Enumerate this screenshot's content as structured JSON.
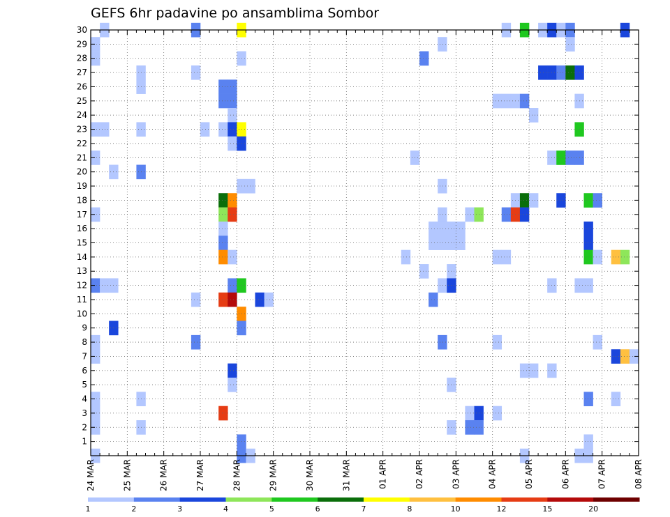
{
  "chart_data": {
    "type": "heatmap",
    "title": "GEFS 6hr padavine po ansamblima Sombor",
    "xlabel": "",
    "ylabel": "",
    "x_ticks": [
      "24 MAR",
      "25 MAR",
      "26 MAR",
      "27 MAR",
      "28 MAR",
      "29 MAR",
      "30 MAR",
      "31 MAR",
      "01 APR",
      "02 APR",
      "03 APR",
      "04 APR",
      "05 APR",
      "06 APR",
      "07 APR",
      "08 APR"
    ],
    "y_ticks": [
      "1",
      "2",
      "3",
      "4",
      "5",
      "6",
      "7",
      "8",
      "9",
      "10",
      "11",
      "12",
      "13",
      "14",
      "15",
      "16",
      "17",
      "18",
      "19",
      "20",
      "21",
      "22",
      "23",
      "24",
      "25",
      "26",
      "27",
      "28",
      "29",
      "30"
    ],
    "x_range_steps": [
      0,
      60
    ],
    "y_range_members": [
      0,
      30
    ],
    "grid": true,
    "colorbar_labels": [
      "1",
      "2",
      "3",
      "4",
      "5",
      "6",
      "7",
      "8",
      "10",
      "12",
      "15",
      "20"
    ],
    "colors": {
      "c1": "#b3c7ff",
      "c2": "#5a82f0",
      "c3": "#1a46dc",
      "c4": "#8ee65a",
      "c5": "#1fc81f",
      "c6": "#0a6e0a",
      "c7": "#ffff00",
      "c8": "#ffc040",
      "c10": "#ff8c00",
      "c12": "#e63c14",
      "c15": "#b40a0a",
      "c20": "#6e0000"
    },
    "cells": [
      {
        "member": 30,
        "step": 1,
        "bin": "c1"
      },
      {
        "member": 30,
        "step": 11,
        "bin": "c2"
      },
      {
        "member": 30,
        "step": 16,
        "bin": "c7"
      },
      {
        "member": 30,
        "step": 45,
        "bin": "c1"
      },
      {
        "member": 30,
        "step": 47,
        "bin": "c5"
      },
      {
        "member": 30,
        "step": 49,
        "bin": "c1"
      },
      {
        "member": 30,
        "step": 50,
        "bin": "c3"
      },
      {
        "member": 30,
        "step": 51,
        "bin": "c1"
      },
      {
        "member": 30,
        "step": 52,
        "bin": "c2"
      },
      {
        "member": 30,
        "step": 58,
        "bin": "c3"
      },
      {
        "member": 29,
        "step": 0,
        "bin": "c1"
      },
      {
        "member": 29,
        "step": 38,
        "bin": "c1"
      },
      {
        "member": 29,
        "step": 52,
        "bin": "c1"
      },
      {
        "member": 28,
        "step": 0,
        "bin": "c1"
      },
      {
        "member": 28,
        "step": 16,
        "bin": "c1"
      },
      {
        "member": 28,
        "step": 36,
        "bin": "c2"
      },
      {
        "member": 27,
        "step": 5,
        "bin": "c1"
      },
      {
        "member": 27,
        "step": 11,
        "bin": "c1"
      },
      {
        "member": 27,
        "step": 49,
        "bin": "c3"
      },
      {
        "member": 27,
        "step": 50,
        "bin": "c3"
      },
      {
        "member": 27,
        "step": 51,
        "bin": "c2"
      },
      {
        "member": 27,
        "step": 52,
        "bin": "c6"
      },
      {
        "member": 27,
        "step": 53,
        "bin": "c3"
      },
      {
        "member": 26,
        "step": 5,
        "bin": "c1"
      },
      {
        "member": 26,
        "step": 14,
        "bin": "c2"
      },
      {
        "member": 26,
        "step": 15,
        "bin": "c2"
      },
      {
        "member": 25,
        "step": 14,
        "bin": "c2"
      },
      {
        "member": 25,
        "step": 15,
        "bin": "c2"
      },
      {
        "member": 25,
        "step": 44,
        "bin": "c1"
      },
      {
        "member": 25,
        "step": 45,
        "bin": "c1"
      },
      {
        "member": 25,
        "step": 46,
        "bin": "c1"
      },
      {
        "member": 25,
        "step": 47,
        "bin": "c2"
      },
      {
        "member": 25,
        "step": 53,
        "bin": "c1"
      },
      {
        "member": 24,
        "step": 15,
        "bin": "c1"
      },
      {
        "member": 24,
        "step": 48,
        "bin": "c1"
      },
      {
        "member": 23,
        "step": 0,
        "bin": "c1"
      },
      {
        "member": 23,
        "step": 1,
        "bin": "c1"
      },
      {
        "member": 23,
        "step": 5,
        "bin": "c1"
      },
      {
        "member": 23,
        "step": 12,
        "bin": "c1"
      },
      {
        "member": 23,
        "step": 14,
        "bin": "c1"
      },
      {
        "member": 23,
        "step": 15,
        "bin": "c3"
      },
      {
        "member": 23,
        "step": 16,
        "bin": "c7"
      },
      {
        "member": 23,
        "step": 53,
        "bin": "c5"
      },
      {
        "member": 22,
        "step": 15,
        "bin": "c1"
      },
      {
        "member": 22,
        "step": 16,
        "bin": "c3"
      },
      {
        "member": 21,
        "step": 0,
        "bin": "c1"
      },
      {
        "member": 21,
        "step": 35,
        "bin": "c1"
      },
      {
        "member": 21,
        "step": 50,
        "bin": "c1"
      },
      {
        "member": 21,
        "step": 51,
        "bin": "c5"
      },
      {
        "member": 21,
        "step": 52,
        "bin": "c2"
      },
      {
        "member": 21,
        "step": 53,
        "bin": "c2"
      },
      {
        "member": 20,
        "step": 2,
        "bin": "c1"
      },
      {
        "member": 20,
        "step": 5,
        "bin": "c2"
      },
      {
        "member": 19,
        "step": 16,
        "bin": "c1"
      },
      {
        "member": 19,
        "step": 17,
        "bin": "c1"
      },
      {
        "member": 19,
        "step": 38,
        "bin": "c1"
      },
      {
        "member": 18,
        "step": 14,
        "bin": "c6"
      },
      {
        "member": 18,
        "step": 15,
        "bin": "c10"
      },
      {
        "member": 18,
        "step": 46,
        "bin": "c1"
      },
      {
        "member": 18,
        "step": 47,
        "bin": "c6"
      },
      {
        "member": 18,
        "step": 48,
        "bin": "c1"
      },
      {
        "member": 18,
        "step": 51,
        "bin": "c3"
      },
      {
        "member": 18,
        "step": 54,
        "bin": "c5"
      },
      {
        "member": 18,
        "step": 55,
        "bin": "c2"
      },
      {
        "member": 17,
        "step": 0,
        "bin": "c1"
      },
      {
        "member": 17,
        "step": 14,
        "bin": "c4"
      },
      {
        "member": 17,
        "step": 15,
        "bin": "c12"
      },
      {
        "member": 17,
        "step": 38,
        "bin": "c1"
      },
      {
        "member": 17,
        "step": 41,
        "bin": "c1"
      },
      {
        "member": 17,
        "step": 42,
        "bin": "c4"
      },
      {
        "member": 17,
        "step": 45,
        "bin": "c2"
      },
      {
        "member": 17,
        "step": 46,
        "bin": "c12"
      },
      {
        "member": 17,
        "step": 47,
        "bin": "c3"
      },
      {
        "member": 16,
        "step": 14,
        "bin": "c1"
      },
      {
        "member": 16,
        "step": 37,
        "bin": "c1"
      },
      {
        "member": 16,
        "step": 38,
        "bin": "c1"
      },
      {
        "member": 16,
        "step": 39,
        "bin": "c1"
      },
      {
        "member": 16,
        "step": 40,
        "bin": "c1"
      },
      {
        "member": 16,
        "step": 54,
        "bin": "c3"
      },
      {
        "member": 15,
        "step": 14,
        "bin": "c2"
      },
      {
        "member": 15,
        "step": 37,
        "bin": "c1"
      },
      {
        "member": 15,
        "step": 38,
        "bin": "c1"
      },
      {
        "member": 15,
        "step": 39,
        "bin": "c1"
      },
      {
        "member": 15,
        "step": 40,
        "bin": "c1"
      },
      {
        "member": 15,
        "step": 54,
        "bin": "c3"
      },
      {
        "member": 14,
        "step": 14,
        "bin": "c10"
      },
      {
        "member": 14,
        "step": 15,
        "bin": "c1"
      },
      {
        "member": 14,
        "step": 34,
        "bin": "c1"
      },
      {
        "member": 14,
        "step": 44,
        "bin": "c1"
      },
      {
        "member": 14,
        "step": 45,
        "bin": "c1"
      },
      {
        "member": 14,
        "step": 54,
        "bin": "c5"
      },
      {
        "member": 14,
        "step": 55,
        "bin": "c1"
      },
      {
        "member": 14,
        "step": 57,
        "bin": "c8"
      },
      {
        "member": 14,
        "step": 58,
        "bin": "c4"
      },
      {
        "member": 13,
        "step": 36,
        "bin": "c1"
      },
      {
        "member": 13,
        "step": 39,
        "bin": "c1"
      },
      {
        "member": 12,
        "step": 0,
        "bin": "c2"
      },
      {
        "member": 12,
        "step": 1,
        "bin": "c1"
      },
      {
        "member": 12,
        "step": 2,
        "bin": "c1"
      },
      {
        "member": 12,
        "step": 15,
        "bin": "c2"
      },
      {
        "member": 12,
        "step": 16,
        "bin": "c5"
      },
      {
        "member": 12,
        "step": 38,
        "bin": "c1"
      },
      {
        "member": 12,
        "step": 39,
        "bin": "c3"
      },
      {
        "member": 12,
        "step": 50,
        "bin": "c1"
      },
      {
        "member": 12,
        "step": 53,
        "bin": "c1"
      },
      {
        "member": 12,
        "step": 54,
        "bin": "c1"
      },
      {
        "member": 11,
        "step": 11,
        "bin": "c1"
      },
      {
        "member": 11,
        "step": 14,
        "bin": "c12"
      },
      {
        "member": 11,
        "step": 15,
        "bin": "c15"
      },
      {
        "member": 11,
        "step": 18,
        "bin": "c3"
      },
      {
        "member": 11,
        "step": 19,
        "bin": "c1"
      },
      {
        "member": 11,
        "step": 37,
        "bin": "c2"
      },
      {
        "member": 10,
        "step": 16,
        "bin": "c10"
      },
      {
        "member": 9,
        "step": 2,
        "bin": "c3"
      },
      {
        "member": 9,
        "step": 16,
        "bin": "c2"
      },
      {
        "member": 8,
        "step": 0,
        "bin": "c1"
      },
      {
        "member": 8,
        "step": 11,
        "bin": "c2"
      },
      {
        "member": 8,
        "step": 38,
        "bin": "c2"
      },
      {
        "member": 8,
        "step": 44,
        "bin": "c1"
      },
      {
        "member": 8,
        "step": 55,
        "bin": "c1"
      },
      {
        "member": 7,
        "step": 0,
        "bin": "c1"
      },
      {
        "member": 7,
        "step": 57,
        "bin": "c3"
      },
      {
        "member": 7,
        "step": 58,
        "bin": "c8"
      },
      {
        "member": 7,
        "step": 59,
        "bin": "c1"
      },
      {
        "member": 6,
        "step": 15,
        "bin": "c3"
      },
      {
        "member": 6,
        "step": 47,
        "bin": "c1"
      },
      {
        "member": 6,
        "step": 48,
        "bin": "c1"
      },
      {
        "member": 6,
        "step": 50,
        "bin": "c1"
      },
      {
        "member": 5,
        "step": 15,
        "bin": "c1"
      },
      {
        "member": 5,
        "step": 39,
        "bin": "c1"
      },
      {
        "member": 4,
        "step": 0,
        "bin": "c1"
      },
      {
        "member": 4,
        "step": 5,
        "bin": "c1"
      },
      {
        "member": 4,
        "step": 54,
        "bin": "c2"
      },
      {
        "member": 4,
        "step": 57,
        "bin": "c1"
      },
      {
        "member": 3,
        "step": 0,
        "bin": "c1"
      },
      {
        "member": 3,
        "step": 14,
        "bin": "c12"
      },
      {
        "member": 3,
        "step": 41,
        "bin": "c1"
      },
      {
        "member": 3,
        "step": 42,
        "bin": "c3"
      },
      {
        "member": 3,
        "step": 44,
        "bin": "c1"
      },
      {
        "member": 2,
        "step": 0,
        "bin": "c1"
      },
      {
        "member": 2,
        "step": 5,
        "bin": "c1"
      },
      {
        "member": 2,
        "step": 39,
        "bin": "c1"
      },
      {
        "member": 2,
        "step": 41,
        "bin": "c2"
      },
      {
        "member": 2,
        "step": 42,
        "bin": "c2"
      },
      {
        "member": 1,
        "step": 16,
        "bin": "c2"
      },
      {
        "member": 1,
        "step": 54,
        "bin": "c1"
      },
      {
        "member": 0,
        "step": 0,
        "bin": "c1"
      },
      {
        "member": 0,
        "step": 16,
        "bin": "c2"
      },
      {
        "member": 0,
        "step": 17,
        "bin": "c1"
      },
      {
        "member": 0,
        "step": 47,
        "bin": "c1"
      },
      {
        "member": 0,
        "step": 53,
        "bin": "c1"
      },
      {
        "member": 0,
        "step": 54,
        "bin": "c1"
      }
    ]
  }
}
